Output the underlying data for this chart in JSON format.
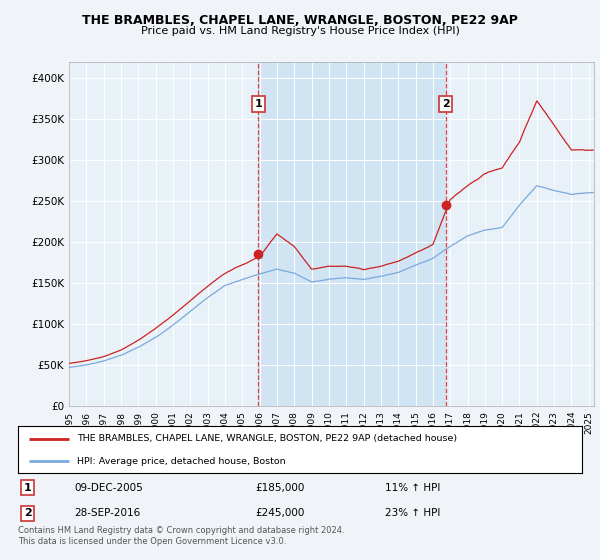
{
  "title": "THE BRAMBLES, CHAPEL LANE, WRANGLE, BOSTON, PE22 9AP",
  "subtitle": "Price paid vs. HM Land Registry's House Price Index (HPI)",
  "background_color": "#f0f4f8",
  "plot_bg_color": "#e8f0f8",
  "plot_bg_shade": "#d0e4f4",
  "ylabel_ticks": [
    "£0",
    "£50K",
    "£100K",
    "£150K",
    "£200K",
    "£250K",
    "£300K",
    "£350K",
    "£400K"
  ],
  "ytick_values": [
    0,
    50000,
    100000,
    150000,
    200000,
    250000,
    300000,
    350000,
    400000
  ],
  "ylim": [
    0,
    420000
  ],
  "xlim_start": 1995.0,
  "xlim_end": 2025.3,
  "sale1_x": 2005.92,
  "sale1_y": 185000,
  "sale2_x": 2016.73,
  "sale2_y": 245000,
  "vline1_x": 2005.92,
  "vline2_x": 2016.73,
  "legend_line1": "THE BRAMBLES, CHAPEL LANE, WRANGLE, BOSTON, PE22 9AP (detached house)",
  "legend_line2": "HPI: Average price, detached house, Boston",
  "table_row1_date": "09-DEC-2005",
  "table_row1_price": "£185,000",
  "table_row1_hpi": "11% ↑ HPI",
  "table_row2_date": "28-SEP-2016",
  "table_row2_price": "£245,000",
  "table_row2_hpi": "23% ↑ HPI",
  "footer": "Contains HM Land Registry data © Crown copyright and database right 2024.\nThis data is licensed under the Open Government Licence v3.0.",
  "red_color": "#cc2222",
  "blue_color": "#7aaadd",
  "vline_color": "#dd3333"
}
